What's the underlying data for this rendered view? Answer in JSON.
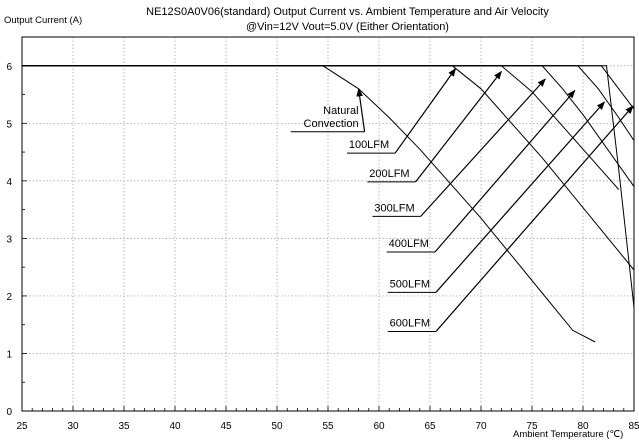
{
  "chart_data": {
    "type": "line",
    "title": "NE12S0A0V06(standard)  Output Current vs. Ambient Temperature and Air Velocity",
    "subtitle": "@Vin=12V Vout=5.0V (Either Orientation)",
    "ylabel": "Output Current (A)",
    "xlabel": "Ambient Temperature (℃)",
    "xlim": [
      25,
      85
    ],
    "ylim": [
      0,
      6.5
    ],
    "x_ticks": [
      "25",
      "30",
      "35",
      "40",
      "45",
      "50",
      "55",
      "60",
      "65",
      "70",
      "75",
      "80",
      "85"
    ],
    "y_ticks": [
      "0",
      "1",
      "2",
      "3",
      "4",
      "5",
      "6"
    ],
    "grid": true,
    "series": [
      {
        "name": "Natural Convection",
        "x": [
          25,
          54.5,
          58,
          61,
          64,
          67,
          70,
          73,
          76,
          79,
          81.2
        ],
        "y": [
          6,
          6,
          5.6,
          5.1,
          4.55,
          3.95,
          3.35,
          2.7,
          2.05,
          1.4,
          1.2
        ]
      },
      {
        "name": "100LFM",
        "x": [
          25,
          67.2,
          70,
          73,
          76,
          79,
          82,
          85
        ],
        "y": [
          6,
          6,
          5.6,
          5.0,
          4.4,
          3.75,
          3.1,
          2.45
        ]
      },
      {
        "name": "200LFM",
        "x": [
          25,
          72,
          75,
          78,
          81,
          83.5
        ],
        "y": [
          6,
          6,
          5.55,
          4.95,
          4.35,
          3.85
        ]
      },
      {
        "name": "300LFM",
        "x": [
          25,
          76,
          78,
          80,
          82,
          85
        ],
        "y": [
          6,
          6,
          5.6,
          5.15,
          4.65,
          3.9
        ]
      },
      {
        "name": "400LFM",
        "x": [
          25,
          79.5,
          81.5,
          83.5,
          85
        ],
        "y": [
          6,
          6,
          5.6,
          5.1,
          4.7
        ]
      },
      {
        "name": "500LFM",
        "x": [
          25,
          81.8,
          83.5,
          85
        ],
        "y": [
          6,
          6,
          5.6,
          5.25
        ]
      },
      {
        "name": "600LFM",
        "x": [
          25,
          82.3,
          83.5,
          84.5,
          85
        ],
        "y": [
          6,
          6,
          4.2,
          2.6,
          1.8
        ]
      }
    ],
    "annotations": [
      {
        "label": "Natural\nConvection",
        "text_xy": [
          58,
          4.87
        ],
        "tip_xy": [
          58.0,
          5.6
        ]
      },
      {
        "label": "100LFM",
        "text_xy": [
          61,
          4.5
        ],
        "tip_xy": [
          67.5,
          5.95
        ]
      },
      {
        "label": "200LFM",
        "text_xy": [
          63,
          4.0
        ],
        "tip_xy": [
          72.0,
          5.9
        ]
      },
      {
        "label": "300LFM",
        "text_xy": [
          63.5,
          3.4
        ],
        "tip_xy": [
          76.3,
          5.77
        ]
      },
      {
        "label": "400LFM",
        "text_xy": [
          64.9,
          2.78
        ],
        "tip_xy": [
          79.2,
          5.57
        ]
      },
      {
        "label": "500LFM",
        "text_xy": [
          65,
          2.08
        ],
        "tip_xy": [
          82.1,
          5.37
        ]
      },
      {
        "label": "600LFM",
        "text_xy": [
          65,
          1.4
        ],
        "tip_xy": [
          84.9,
          5.3
        ]
      }
    ]
  }
}
